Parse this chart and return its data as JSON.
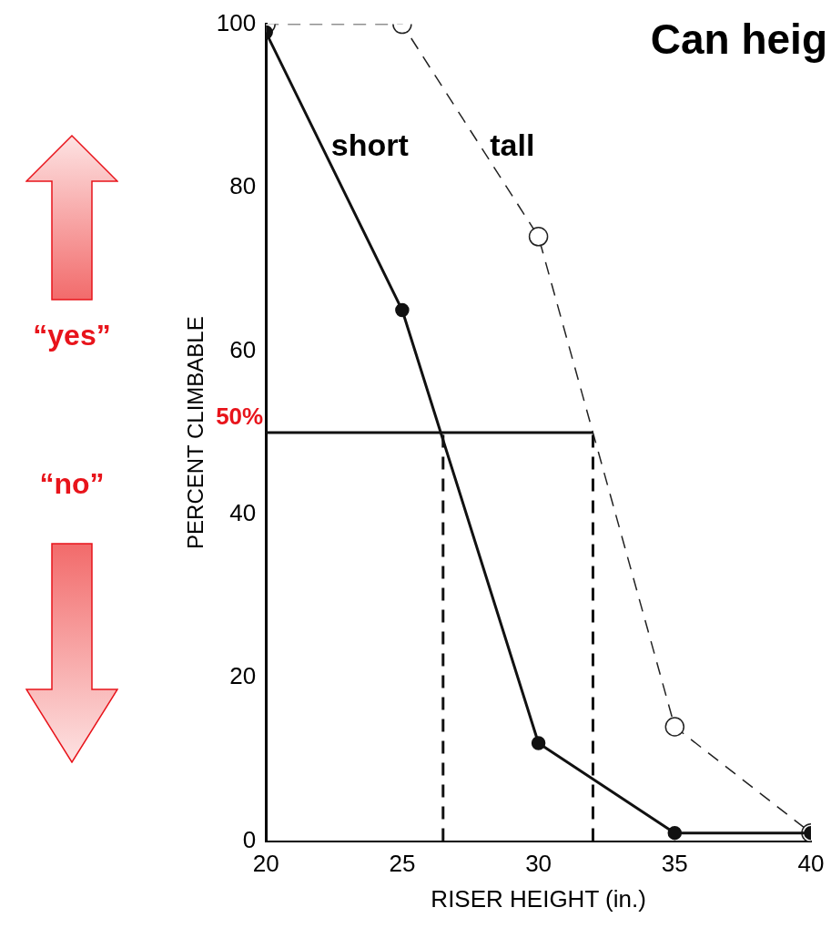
{
  "chart_data": {
    "type": "line",
    "title": "Can heig",
    "xlabel": "RISER HEIGHT (in.)",
    "ylabel": "PERCENT CLIMBABLE",
    "x": [
      20,
      25,
      30,
      35,
      40
    ],
    "series": [
      {
        "name": "short",
        "color": "#111111",
        "values": [
          99,
          65,
          12,
          1,
          1
        ],
        "line_style": "solid"
      },
      {
        "name": "tall",
        "color": "#222222",
        "values": [
          100,
          100,
          74,
          14,
          1
        ],
        "line_style": "dashed"
      }
    ],
    "xlim": [
      20,
      40
    ],
    "xticks": [
      20,
      25,
      30,
      35,
      40
    ],
    "ylim": [
      0,
      100
    ],
    "yticks": [
      0,
      20,
      40,
      60,
      80,
      100
    ],
    "grid": false,
    "legend": false,
    "marker": "circle",
    "ref_lines": [
      {
        "axis": "y",
        "value": 50,
        "label": "50%",
        "color": "#111111",
        "line_style": "solid"
      },
      {
        "axis": "x",
        "value": 26.5,
        "label": null,
        "color": "#111111",
        "line_style": "dashed"
      },
      {
        "axis": "x",
        "value": 32,
        "label": null,
        "color": "#111111",
        "line_style": "dashed"
      }
    ],
    "annotations": [
      "“yes”",
      "“no”"
    ]
  }
}
